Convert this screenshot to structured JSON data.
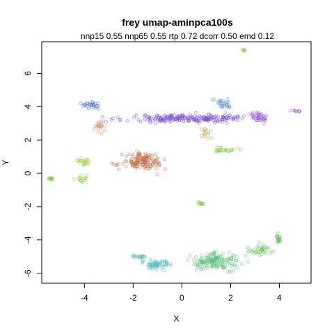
{
  "chart_data": {
    "type": "scatter",
    "title": "frey umap-aminpca100s",
    "subtitle": "nnp15 0.55 nnp65 0.55 rtp 0.72 dcorr 0.50 emd 0.12",
    "xlabel": "X",
    "ylabel": "Y",
    "xlim": [
      -5.75,
      5.3
    ],
    "ylim": [
      -6.6,
      7.9
    ],
    "xticks": [
      -4,
      -2,
      0,
      2,
      4
    ],
    "yticks": [
      -6,
      -4,
      -2,
      0,
      2,
      4,
      6
    ],
    "grid": false,
    "legend": "none",
    "point_alpha": 0.55,
    "clusters": [
      {
        "color": "#7B52D1",
        "n": 240,
        "cx": 0.3,
        "cy": 3.3,
        "sx": 2.3,
        "sy": 0.22,
        "seed": 11
      },
      {
        "color": "#9E5FD8",
        "n": 40,
        "cx": 3.2,
        "cy": 3.4,
        "sx": 0.45,
        "sy": 0.25,
        "seed": 12
      },
      {
        "color": "#4F72C9",
        "n": 28,
        "cx": -3.7,
        "cy": 4.1,
        "sx": 0.35,
        "sy": 0.18,
        "seed": 13
      },
      {
        "color": "#5B8CD6",
        "n": 30,
        "cx": 1.8,
        "cy": 4.2,
        "sx": 0.35,
        "sy": 0.3,
        "seed": 14
      },
      {
        "color": "#B060D6",
        "n": 10,
        "cx": 4.75,
        "cy": 3.75,
        "sx": 0.18,
        "sy": 0.06,
        "seed": 15
      },
      {
        "color": "#C0704A",
        "n": 150,
        "cx": -1.6,
        "cy": 0.7,
        "sx": 0.75,
        "sy": 0.45,
        "seed": 21
      },
      {
        "color": "#D08E63",
        "n": 22,
        "cx": -3.4,
        "cy": 2.8,
        "sx": 0.2,
        "sy": 0.4,
        "seed": 22
      },
      {
        "color": "#B89F3F",
        "n": 14,
        "cx": 1.05,
        "cy": 2.4,
        "sx": 0.2,
        "sy": 0.3,
        "seed": 23
      },
      {
        "color": "#9ACD32",
        "n": 22,
        "cx": -4.1,
        "cy": 0.7,
        "sx": 0.3,
        "sy": 0.2,
        "seed": 31
      },
      {
        "color": "#8EC63F",
        "n": 16,
        "cx": -4.05,
        "cy": -0.35,
        "sx": 0.25,
        "sy": 0.2,
        "seed": 32
      },
      {
        "color": "#7CBB3A",
        "n": 10,
        "cx": -5.35,
        "cy": -0.35,
        "sx": 0.1,
        "sy": 0.08,
        "seed": 33
      },
      {
        "color": "#7EC241",
        "n": 24,
        "cx": 1.75,
        "cy": 1.4,
        "sx": 0.5,
        "sy": 0.15,
        "seed": 34
      },
      {
        "color": "#7BC043",
        "n": 10,
        "cx": 0.8,
        "cy": -1.8,
        "sx": 0.12,
        "sy": 0.2,
        "seed": 35
      },
      {
        "color": "#8BC34A",
        "n": 6,
        "cx": 2.55,
        "cy": 7.4,
        "sx": 0.06,
        "sy": 0.05,
        "seed": 36
      },
      {
        "color": "#5CBF7A",
        "n": 160,
        "cx": 1.4,
        "cy": -5.3,
        "sx": 0.9,
        "sy": 0.45,
        "seed": 41
      },
      {
        "color": "#4FB8B8",
        "n": 60,
        "cx": -1.1,
        "cy": -5.45,
        "sx": 0.6,
        "sy": 0.25,
        "seed": 42
      },
      {
        "color": "#69C35A",
        "n": 40,
        "cx": 3.1,
        "cy": -4.6,
        "sx": 0.55,
        "sy": 0.35,
        "seed": 43
      },
      {
        "color": "#4CAF50",
        "n": 14,
        "cx": 3.95,
        "cy": -4.0,
        "sx": 0.12,
        "sy": 0.3,
        "seed": 44
      },
      {
        "color": "#58B7A8",
        "n": 18,
        "cx": -1.8,
        "cy": -5.0,
        "sx": 0.3,
        "sy": 0.08,
        "seed": 45
      }
    ]
  }
}
